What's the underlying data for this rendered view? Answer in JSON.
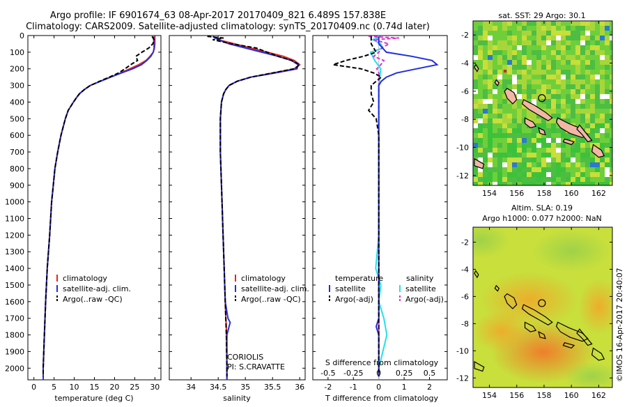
{
  "header": {
    "title_line1": "Argo profile: IF 6901674_63 08-Apr-2017 20170409_821 6.489S 157.838E",
    "title_line2": "Climatology: CARS2009. Satellite-adjusted climatology: synTS_20170409.nc (0.74d later)"
  },
  "colors": {
    "climatology": "#e8231f",
    "satellite": "#1f2fe0",
    "argo": "#000000",
    "sat_salinity": "#22e0e8",
    "argo_salinity": "#e030d8"
  },
  "depth_axis": {
    "min": 0,
    "max": 2070,
    "ticks": [
      "0",
      "100",
      "200",
      "300",
      "400",
      "500",
      "600",
      "700",
      "800",
      "900",
      "1000",
      "1100",
      "1200",
      "1300",
      "1400",
      "1500",
      "1600",
      "1700",
      "1800",
      "1900",
      "2000"
    ]
  },
  "chart_data": [
    {
      "type": "line",
      "name": "temperature",
      "xlabel": "temperature (deg C)",
      "xlim": [
        -1.5,
        31.5
      ],
      "xticks": [
        "0",
        "5",
        "10",
        "15",
        "20",
        "25",
        "30"
      ],
      "legend": [
        "climatology",
        "satellite-adj. clim.",
        "Argo(..raw -QC)"
      ],
      "series": [
        {
          "name": "climatology",
          "depth": [
            5,
            25,
            50,
            75,
            100,
            125,
            150,
            175,
            200,
            225,
            250,
            275,
            300,
            325,
            350,
            375,
            400,
            450,
            500,
            600,
            700,
            800,
            900,
            1000,
            1200,
            1400,
            1600,
            1800,
            2000,
            2070
          ],
          "values": [
            30,
            30,
            30,
            29.9,
            29.6,
            28.8,
            27.8,
            26,
            23.8,
            21.5,
            19,
            16.5,
            14,
            12.5,
            11.3,
            10.5,
            9.8,
            8.5,
            7.8,
            6.7,
            5.9,
            5.2,
            4.8,
            4.4,
            3.9,
            3.3,
            2.9,
            2.6,
            2.3,
            2.3
          ]
        },
        {
          "name": "satellite",
          "depth": [
            5,
            25,
            50,
            75,
            100,
            125,
            150,
            175,
            200,
            225,
            250,
            275,
            300,
            325,
            350,
            375,
            400,
            450,
            500,
            600,
            700,
            800,
            900,
            1000,
            1200,
            1400,
            1600,
            1800,
            2000,
            2070
          ],
          "values": [
            29.7,
            29.7,
            29.8,
            29.8,
            29.6,
            29,
            28,
            26.7,
            24.5,
            21.7,
            19,
            16.5,
            14,
            12.5,
            11.3,
            10.5,
            9.8,
            8.5,
            7.8,
            6.7,
            5.9,
            5.2,
            4.8,
            4.4,
            3.9,
            3.3,
            2.9,
            2.6,
            2.3,
            2.3
          ]
        },
        {
          "name": "argo",
          "depth": [
            5,
            25,
            50,
            75,
            100,
            125,
            150,
            175,
            200,
            225,
            250,
            275,
            300,
            325,
            350,
            375,
            400,
            450,
            500,
            600,
            700,
            800,
            900,
            1000,
            1200,
            1400,
            1600,
            1800,
            2000,
            2050
          ],
          "values": [
            29.3,
            29.8,
            29.5,
            28.5,
            26.8,
            25.3,
            25.7,
            24,
            22.6,
            21,
            18.7,
            16.3,
            14,
            12.5,
            11.3,
            10.5,
            9.8,
            8.5,
            7.8,
            6.7,
            5.9,
            5.2,
            4.8,
            4.4,
            3.9,
            3.3,
            2.9,
            2.6,
            2.3,
            2.3
          ]
        }
      ]
    },
    {
      "type": "line",
      "name": "salinity",
      "xlabel": "salinity",
      "xlim": [
        33.6,
        36.1
      ],
      "xticks": [
        "34",
        "34.5",
        "35",
        "35.5",
        "36"
      ],
      "legend": [
        "climatology",
        "satellite-adj. clim.",
        "Argo(..raw -QC)"
      ],
      "annotation": [
        "CORIOLIS",
        "PI: S.CRAVATTE"
      ],
      "series": [
        {
          "name": "climatology",
          "depth": [
            5,
            25,
            50,
            75,
            100,
            125,
            150,
            175,
            200,
            225,
            250,
            275,
            300,
            325,
            350,
            400,
            500,
            600,
            700,
            800,
            900,
            1000,
            1200,
            1400,
            1600,
            1700,
            1750,
            1800,
            2000,
            2070
          ],
          "values": [
            34.4,
            34.5,
            34.8,
            35.1,
            35.4,
            35.7,
            35.9,
            36,
            35.9,
            35.5,
            35.1,
            34.85,
            34.7,
            34.64,
            34.6,
            34.56,
            34.54,
            34.54,
            34.54,
            34.55,
            34.56,
            34.57,
            34.59,
            34.61,
            34.63,
            34.64,
            34.65,
            34.65,
            34.66,
            34.66
          ]
        },
        {
          "name": "satellite",
          "depth": [
            5,
            25,
            50,
            75,
            100,
            125,
            150,
            175,
            200,
            225,
            250,
            275,
            300,
            325,
            350,
            400,
            500,
            600,
            700,
            800,
            900,
            1000,
            1200,
            1400,
            1600,
            1700,
            1725,
            1750,
            1800,
            2000,
            2070
          ],
          "values": [
            34.4,
            34.5,
            34.7,
            35,
            35.3,
            35.6,
            35.85,
            35.97,
            35.95,
            35.55,
            35.1,
            34.85,
            34.7,
            34.64,
            34.6,
            34.56,
            34.54,
            34.54,
            34.54,
            34.55,
            34.56,
            34.57,
            34.59,
            34.61,
            34.63,
            34.68,
            34.72,
            34.7,
            34.66,
            34.66,
            34.66
          ]
        },
        {
          "name": "argo",
          "depth": [
            5,
            15,
            25,
            50,
            75,
            100,
            125,
            150,
            175,
            200,
            225,
            250,
            275,
            300,
            325,
            350,
            400,
            500,
            600,
            700,
            800,
            900,
            1000,
            1200,
            1400,
            1600,
            1800,
            2000,
            2050
          ],
          "values": [
            34.3,
            34.6,
            34.4,
            34.75,
            35.2,
            35.4,
            35.6,
            35.85,
            36,
            35.9,
            35.5,
            35.1,
            34.85,
            34.7,
            34.64,
            34.6,
            34.56,
            34.54,
            34.54,
            34.54,
            34.55,
            34.56,
            34.57,
            34.59,
            34.61,
            34.63,
            34.65,
            34.66,
            34.66
          ]
        }
      ]
    },
    {
      "type": "line",
      "name": "difference",
      "xlabel": "T difference from climatology",
      "xlim": [
        -2.6,
        2.7
      ],
      "xticks": [
        "-2",
        "-1",
        "0",
        "1",
        "2"
      ],
      "top_label": "S difference from climatology",
      "top_ticks": [
        "-0.5",
        "-0.25",
        "0",
        "0.25",
        "0.5"
      ],
      "legend_title_t": "temperature",
      "legend_title_s": "salinity",
      "legend_t": [
        "satellite",
        "Argo(-adj)"
      ],
      "legend_s": [
        "satellite",
        "Argo(-adj)"
      ],
      "series": [
        {
          "name": "T satellite",
          "depth": [
            5,
            50,
            100,
            125,
            150,
            175,
            200,
            225,
            250,
            275,
            300,
            350,
            400,
            500,
            600,
            800,
            1000,
            1200,
            1400,
            1600,
            1700,
            1750,
            1800,
            2000,
            2050
          ],
          "values": [
            0,
            0,
            0.3,
            1.3,
            2.1,
            2.3,
            1.5,
            0.7,
            0.3,
            0.1,
            0,
            0,
            0,
            0,
            0,
            0,
            0,
            0,
            0,
            0,
            0,
            -0.1,
            0,
            0,
            0
          ]
        },
        {
          "name": "T argo",
          "depth": [
            5,
            50,
            100,
            125,
            150,
            175,
            200,
            225,
            250,
            275,
            300,
            350,
            400,
            450,
            500,
            600,
            800,
            1000,
            1200,
            1400,
            1600,
            1800,
            2000,
            2050
          ],
          "values": [
            -0.3,
            -0.3,
            -0.1,
            -0.6,
            -1.3,
            -1.8,
            -0.7,
            -0.2,
            0.1,
            -0.1,
            -0.3,
            -0.3,
            -0.2,
            -0.4,
            -0.1,
            0,
            0,
            0,
            0,
            0,
            0,
            0,
            0,
            0
          ]
        },
        {
          "name": "S satellite",
          "depth": [
            5,
            25,
            50,
            75,
            100,
            150,
            200,
            250,
            300,
            350,
            400,
            500,
            600,
            800,
            1000,
            1200,
            1400,
            1500,
            1600,
            1700,
            1800,
            2000,
            2050
          ],
          "values": [
            0.02,
            -0.06,
            0.02,
            0.04,
            -0.08,
            -0.04,
            0.02,
            0.01,
            0,
            0,
            0,
            0,
            0,
            0,
            0,
            0,
            -0.03,
            0.02,
            0,
            0.05,
            0.08,
            0,
            0
          ]
        },
        {
          "name": "S argo",
          "depth": [
            5,
            15,
            25,
            50,
            75,
            100,
            125,
            150,
            175,
            200,
            225,
            250,
            275,
            300,
            350,
            400,
            500,
            600,
            800,
            1000,
            1200,
            1400,
            1600,
            1800,
            2000,
            2050
          ],
          "values": [
            -0.1,
            0.2,
            -0.05,
            0.1,
            0.03,
            0,
            -0.05,
            0.05,
            0.02,
            -0.02,
            0,
            0,
            0,
            0,
            0,
            0,
            0,
            0,
            0,
            0,
            0,
            0,
            0,
            0,
            0,
            0
          ]
        }
      ]
    },
    {
      "type": "heatmap",
      "name": "sst_map",
      "title": "sat. SST: 29  Argo: 30.1",
      "xticks": [
        "154",
        "156",
        "158",
        "160",
        "162"
      ],
      "yticks": [
        "-2",
        "-4",
        "-6",
        "-8",
        "-10",
        "-12"
      ],
      "xlim": [
        152.8,
        163
      ],
      "ylim": [
        -12.7,
        -1.0
      ],
      "marker": {
        "lon": 157.84,
        "lat": -6.49
      }
    },
    {
      "type": "heatmap",
      "name": "sla_map",
      "title_line1": "Altim. SLA: 0.19",
      "title_line2": "Argo h1000: 0.077 h2000: NaN",
      "xticks": [
        "154",
        "156",
        "158",
        "160",
        "162"
      ],
      "yticks": [
        "-2",
        "-4",
        "-6",
        "-8",
        "-10",
        "-12"
      ],
      "xlim": [
        152.8,
        163
      ],
      "ylim": [
        -12.7,
        -0.9
      ],
      "marker": {
        "lon": 157.84,
        "lat": -6.49
      }
    }
  ],
  "credit": "©IMOS 16-Apr-2017 20:40:07"
}
